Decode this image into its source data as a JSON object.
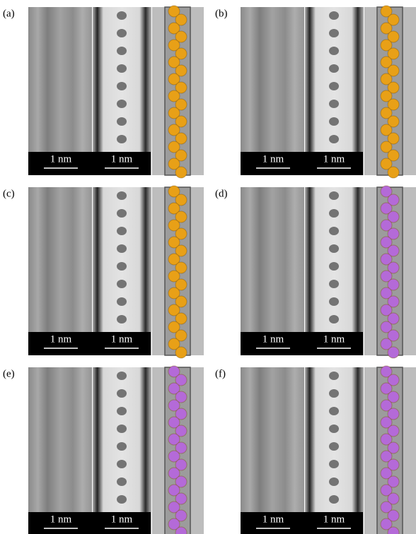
{
  "panels": [
    {
      "label": "(a)",
      "scale_bars": [
        "1 nm",
        "1 nm"
      ],
      "model_color": "#e8a017"
    },
    {
      "label": "(b)",
      "scale_bars": [
        "1 nm",
        "1 nm"
      ],
      "model_color": "#e8a017"
    },
    {
      "label": "(c)",
      "scale_bars": [
        "1 nm",
        "1 nm"
      ],
      "model_color": "#e8a017"
    },
    {
      "label": "(d)",
      "scale_bars": [
        "1 nm",
        "1 nm"
      ],
      "model_color": "#b46ad8"
    },
    {
      "label": "(e)",
      "scale_bars": [
        "1 nm",
        "1 nm"
      ],
      "model_color": "#b46ad8"
    },
    {
      "label": "(f)",
      "scale_bars": [
        "1 nm",
        "1 nm"
      ],
      "model_color": "#b46ad8"
    }
  ]
}
